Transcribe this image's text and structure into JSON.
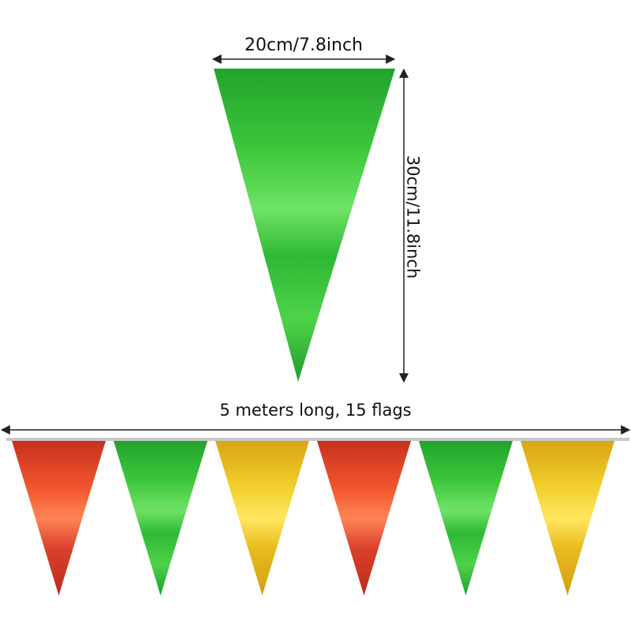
{
  "dimensions": {
    "width_label": "20cm/7.8inch",
    "height_label": "30cm/11.8inch",
    "length_label": "5 meters long, 15 flags"
  },
  "colors": {
    "green": "#1fa82e",
    "green_light": "#5fe05a",
    "red": "#d23a22",
    "red_light": "#ff7a4a",
    "yellow": "#e0b41a",
    "yellow_light": "#ffe45a",
    "string": "#c8c8c8",
    "arrow": "#222222"
  },
  "sample_flag": {
    "color": "green",
    "icon": "pennant-flag"
  },
  "bunting": {
    "flags": [
      {
        "color": "red"
      },
      {
        "color": "green"
      },
      {
        "color": "yellow"
      },
      {
        "color": "red"
      },
      {
        "color": "green"
      },
      {
        "color": "yellow"
      }
    ]
  }
}
